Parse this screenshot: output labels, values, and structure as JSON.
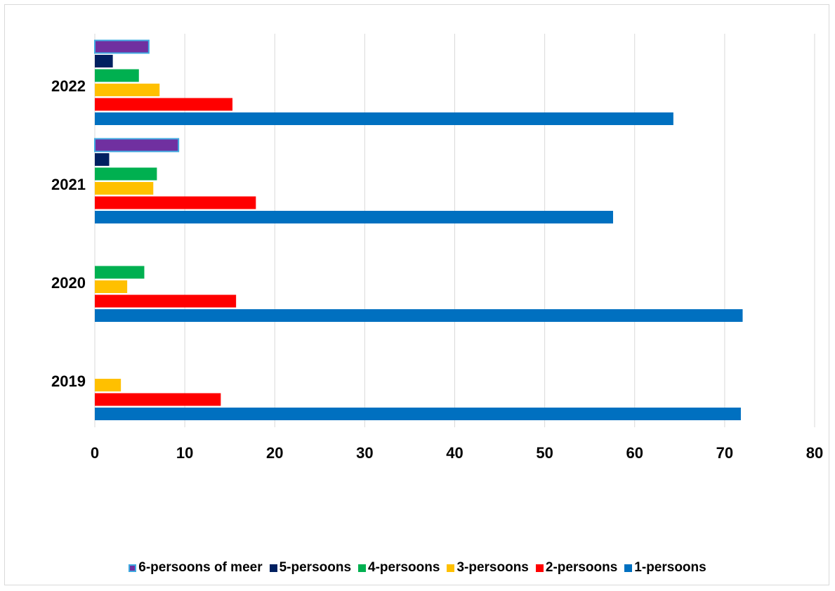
{
  "chart_data": {
    "type": "bar",
    "orientation": "horizontal",
    "categories": [
      "2019",
      "2020",
      "2021",
      "2022"
    ],
    "x_ticks": [
      "0",
      "10",
      "20",
      "30",
      "40",
      "50",
      "60",
      "70",
      "80"
    ],
    "xlim": [
      0,
      80
    ],
    "grid": "vertical",
    "legend_position": "bottom",
    "series": [
      {
        "name": "1-persoons",
        "color": "#0070C0",
        "values": [
          71.8,
          72.0,
          57.6,
          64.3
        ]
      },
      {
        "name": "2-persoons",
        "color": "#FF0000",
        "values": [
          14.0,
          15.7,
          17.9,
          15.3
        ]
      },
      {
        "name": "3-persoons",
        "color": "#FFC000",
        "values": [
          2.9,
          3.6,
          6.5,
          7.2
        ]
      },
      {
        "name": "4-persoons",
        "color": "#00B050",
        "values": [
          0,
          5.5,
          6.9,
          4.9
        ]
      },
      {
        "name": "5-persoons",
        "color": "#002060",
        "values": [
          0,
          0,
          1.6,
          2.0
        ]
      },
      {
        "name": "6-persoons of meer",
        "color": "#7030A0",
        "values": [
          0,
          0,
          9.3,
          6.0
        ]
      }
    ]
  }
}
